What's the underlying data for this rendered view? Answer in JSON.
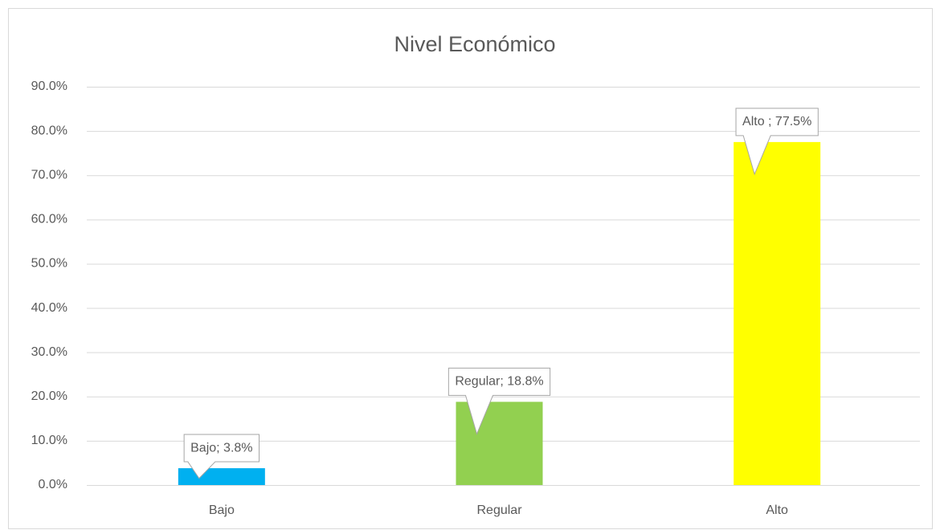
{
  "chart_data": {
    "type": "bar",
    "title": "Nivel Económico",
    "categories": [
      "Bajo",
      "Regular",
      "Alto"
    ],
    "values": [
      3.8,
      18.8,
      77.5
    ],
    "value_labels": [
      "Bajo; 3.8%",
      "Regular; 18.8%",
      "Alto ; 77.5%"
    ],
    "colors": [
      "#00b0f0",
      "#92d050",
      "#ffff00"
    ],
    "ylim": [
      0,
      90
    ],
    "yticks": [
      {
        "value": 0,
        "label": "0.0%"
      },
      {
        "value": 10,
        "label": "10.0%"
      },
      {
        "value": 20,
        "label": "20.0%"
      },
      {
        "value": 30,
        "label": "30.0%"
      },
      {
        "value": 40,
        "label": "40.0%"
      },
      {
        "value": 50,
        "label": "50.0%"
      },
      {
        "value": 60,
        "label": "60.0%"
      },
      {
        "value": 70,
        "label": "70.0%"
      },
      {
        "value": 80,
        "label": "80.0%"
      },
      {
        "value": 90,
        "label": "90.0%"
      }
    ],
    "grid": true
  }
}
